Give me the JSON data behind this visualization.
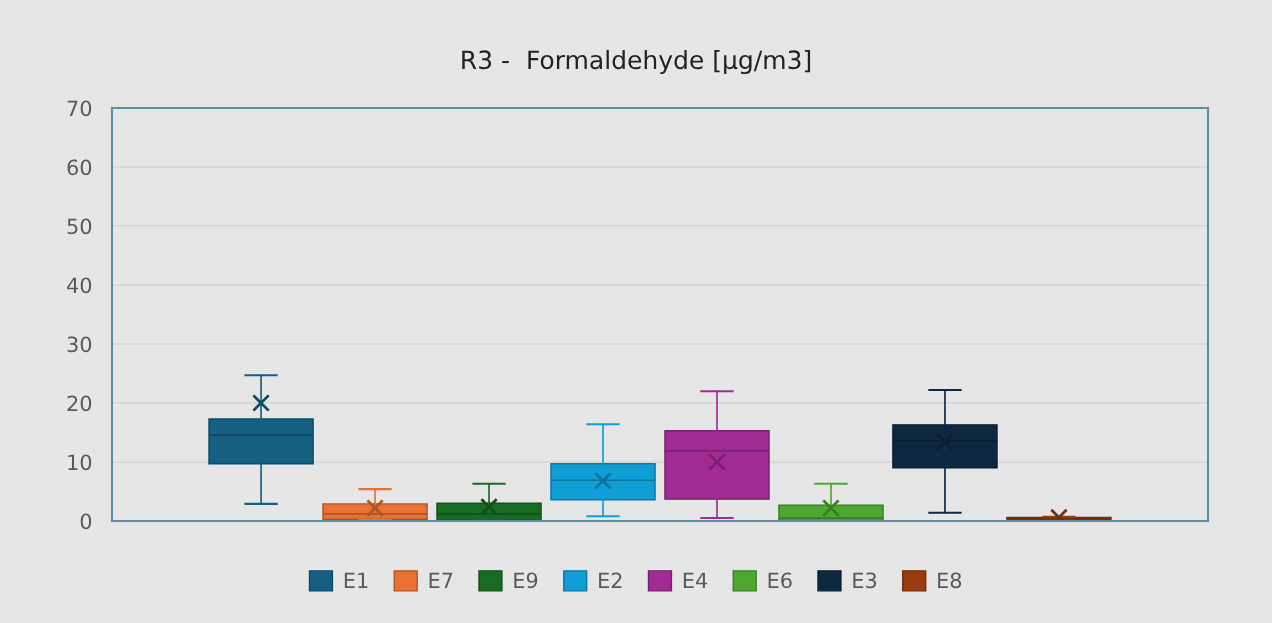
{
  "chart_data": {
    "type": "box",
    "title": "R3 -  Formaldehyde [µg/m3]",
    "categories": [
      null
    ],
    "ylim": [
      0,
      70
    ],
    "yticks": [
      0,
      10,
      20,
      30,
      40,
      50,
      60,
      70
    ],
    "grid": "y",
    "legend": "bottom",
    "marker": "cross",
    "series": [
      {
        "name": "E1",
        "color": "#156082",
        "boxes": [
          {
            "low": 2.9,
            "q1": 9.7,
            "median": 14.6,
            "q3": 17.3,
            "high": 24.7,
            "mean": 20.0
          }
        ]
      },
      {
        "name": "E7",
        "color": "#e97132",
        "boxes": [
          {
            "low": 0.2,
            "q1": 0.3,
            "median": 1.2,
            "q3": 2.9,
            "high": 5.4,
            "mean": 2.2
          }
        ]
      },
      {
        "name": "E9",
        "color": "#196b24",
        "boxes": [
          {
            "low": 0.1,
            "q1": 0.1,
            "median": 1.2,
            "q3": 3.0,
            "high": 6.3,
            "mean": 2.4
          }
        ]
      },
      {
        "name": "E2",
        "color": "#0f9ed5",
        "boxes": [
          {
            "low": 0.8,
            "q1": 3.6,
            "median": 6.9,
            "q3": 9.7,
            "high": 16.4,
            "mean": 6.8
          }
        ]
      },
      {
        "name": "E4",
        "color": "#a02b93",
        "boxes": [
          {
            "low": 0.5,
            "q1": 3.7,
            "median": 11.9,
            "q3": 15.3,
            "high": 22.0,
            "mean": 10.0
          }
        ]
      },
      {
        "name": "E6",
        "color": "#4ea72e",
        "boxes": [
          {
            "low": 0.1,
            "q1": 0.1,
            "median": 0.5,
            "q3": 2.7,
            "high": 6.3,
            "mean": 2.2
          }
        ]
      },
      {
        "name": "E3",
        "color": "#0e2841",
        "boxes": [
          {
            "low": 1.4,
            "q1": 9.0,
            "median": 13.6,
            "q3": 16.3,
            "high": 22.2,
            "mean": 13.4
          }
        ]
      },
      {
        "name": "E8",
        "color": "#993d0f",
        "boxes": [
          {
            "low": 0.2,
            "q1": 0.3,
            "median": 0.4,
            "q3": 0.6,
            "high": 0.7,
            "mean": 0.6
          }
        ]
      }
    ]
  }
}
